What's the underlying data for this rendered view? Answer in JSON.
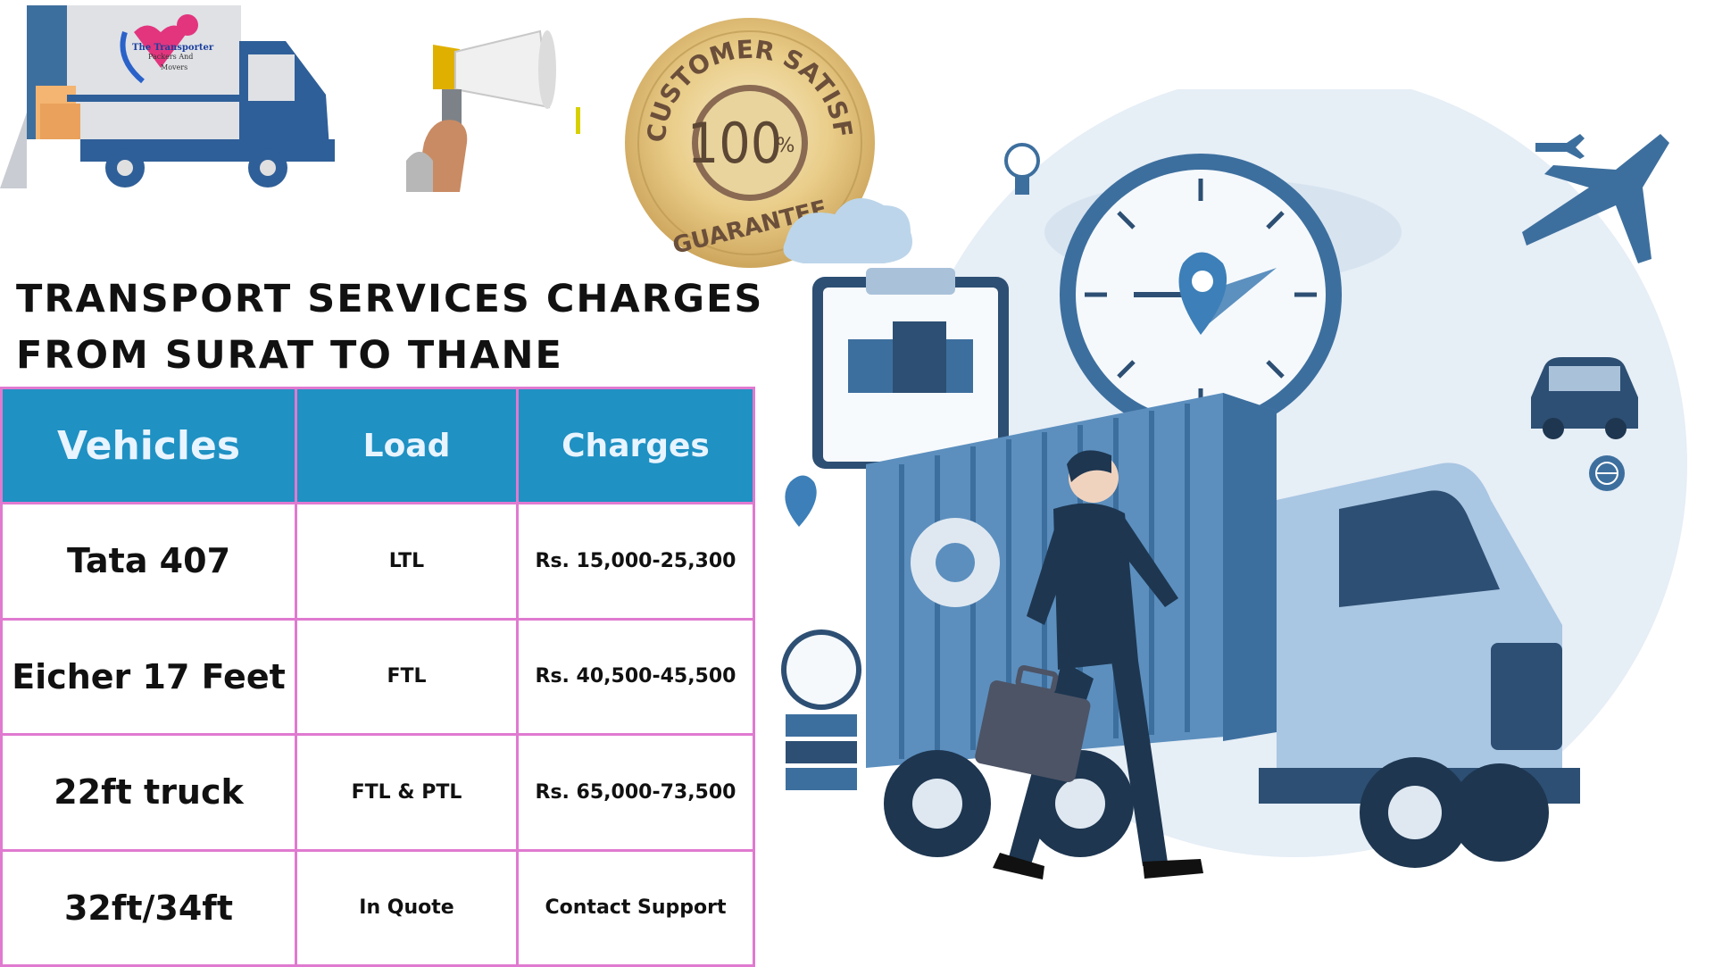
{
  "logo": {
    "line1": "The Transporter",
    "line2": "Packers And",
    "line3": "Movers"
  },
  "seal": {
    "top_text": "CUSTOMER SATISFACTION",
    "number": "100",
    "percent": "%",
    "bottom_text": "GUARANTEE"
  },
  "heading": {
    "line1": "TRANSPORT SERVICES CHARGES",
    "line2": "FROM SURAT TO THANE"
  },
  "table": {
    "headers": {
      "vehicles": "Vehicles",
      "load": "Load",
      "charges": "Charges"
    },
    "rows": [
      {
        "vehicle": "Tata 407",
        "load": "LTL",
        "charges": "Rs. 15,000-25,300"
      },
      {
        "vehicle": "Eicher 17 Feet",
        "load": "FTL",
        "charges": "Rs. 40,500-45,500"
      },
      {
        "vehicle": "22ft truck",
        "load": "FTL & PTL",
        "charges": "Rs. 65,000-73,500"
      },
      {
        "vehicle": "32ft/34ft",
        "load": "In Quote",
        "charges": "Contact Support"
      }
    ]
  },
  "colors": {
    "header_bg": "#1f91c3",
    "table_border": "#e07ad0",
    "illustration_blue": "#3d6f9e"
  },
  "icons": [
    "truck-logo-icon",
    "megaphone-icon",
    "seal-icon",
    "clock-icon",
    "airplane-icon",
    "car-icon",
    "lightbulb-icon",
    "globe-icon",
    "briefcase-icon"
  ]
}
